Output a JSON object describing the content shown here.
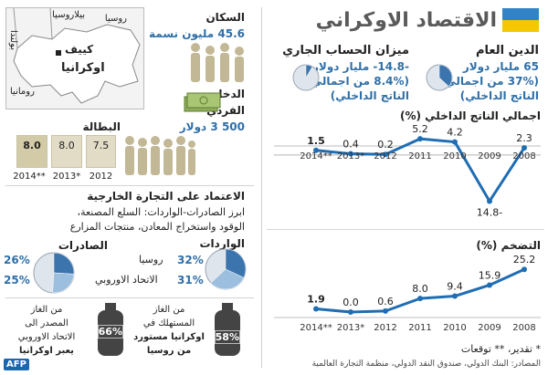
{
  "title": "الاقتصاد الاوكراني",
  "colors": {
    "accent_blue": "#2f6fa8",
    "line_blue": "#1f6db3",
    "flag_blue": "#2f83c6",
    "flag_yellow": "#f4c700"
  },
  "map": {
    "russia": "روسيا",
    "belarus": "بيلاروسيا",
    "poland": "بولندا",
    "kiev": "كييف",
    "ukraine": "اوكرانيا",
    "romania": "رومانيا"
  },
  "public_debt": {
    "label": "الدين العام",
    "line1": "65 مليار دولار",
    "line2": "(37% من اجمالي",
    "line3": "الناتج الداخلي)",
    "share": 0.37
  },
  "current_account": {
    "label": "ميزان الحساب الجاري",
    "line1": "-14.8- مليار دولار",
    "line2": "(8.4% من اجمالي",
    "line3": "الناتج الداخلي)",
    "share": 0.084
  },
  "population": {
    "label": "السكان",
    "value": "45.6 مليون نسمة"
  },
  "income": {
    "label1": "الدخل",
    "label2": "الفردي",
    "value": "500 3 دولار"
  },
  "unemployment": {
    "label": "البطالة",
    "items": [
      {
        "year": "2012",
        "value": "7.5"
      },
      {
        "year": "*2013",
        "value": "8.0"
      },
      {
        "year": "**2014",
        "value": "8.0"
      }
    ]
  },
  "trade": {
    "title": "الاعتماد على التجارة الخارجية",
    "desc1": "ابرز الصادرات-الواردات: السلع المصنعة،",
    "desc2": "الوقود واستخراج المعادن، منتجات المزارع",
    "imports": {
      "label": "الواردات",
      "russia_value": "32%",
      "russia_label": "روسيا",
      "eu_value": "31%",
      "eu_label": "الاتحاد الاوروبي",
      "russia": 32,
      "eu": 31
    },
    "exports": {
      "label": "الصادرات",
      "russia_value": "26%",
      "eu_value": "25%",
      "russia": 26,
      "eu": 25
    }
  },
  "gas": {
    "left": {
      "pct": "66%",
      "line1": "من الغاز",
      "line2": "المصدر الى",
      "line3": "الاتحاد الاوروبي",
      "line4": "يعبر اوكرانيا"
    },
    "right": {
      "pct": "58%",
      "line1": "من الغاز",
      "line2": "المستهلك في",
      "line3": "اوكرانيا مستورد",
      "line4": "من روسيا"
    }
  },
  "footnote": "* تقدير، ** توقعات",
  "source": "المصادر: البنك الدولي، صندوق النقد الدولي، منظمة التجارة العالمية",
  "logo": "AFP",
  "chart_data": [
    {
      "type": "line",
      "title": "اجمالي الناتج الداخلي (%)",
      "categories": [
        "2008",
        "2009",
        "2010",
        "2011",
        "2012",
        "*2013",
        "**2014"
      ],
      "values": [
        2.3,
        -14.8,
        4.2,
        5.2,
        0.2,
        0.4,
        1.5
      ],
      "labels": [
        "2.3",
        "-14.8",
        "4.2",
        "5.2",
        "0.2",
        "0.4",
        "1.5"
      ],
      "ylim": [
        -17,
        7
      ],
      "zero_line": true
    },
    {
      "type": "line",
      "title": "التضخم (%)",
      "categories": [
        "2008",
        "2009",
        "2010",
        "2011",
        "2012",
        "*2013",
        "**2014"
      ],
      "values": [
        25.2,
        15.9,
        9.4,
        8.0,
        0.6,
        0.0,
        1.9
      ],
      "labels": [
        "25.2",
        "15.9",
        "9.4",
        "8.0",
        "0.6",
        "0.0",
        "1.9"
      ],
      "ylim": [
        0,
        28
      ]
    }
  ]
}
